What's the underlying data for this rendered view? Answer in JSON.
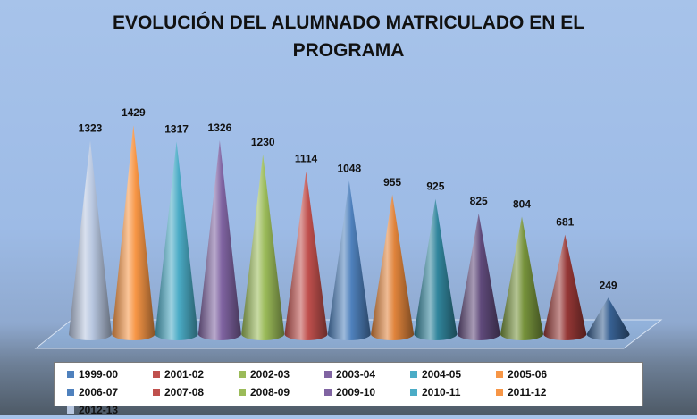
{
  "chart_data": {
    "type": "bar",
    "style": "3d-cone",
    "title_line1": "EVOLUCIÓN DEL ALUMNADO MATRICULADO EN EL",
    "title_line2": "PROGRAMA",
    "legend_placement": "bottom",
    "categories": [
      "2012-13",
      "2011-12",
      "2010-11",
      "2009-10",
      "2008-09",
      "2007-08",
      "2006-07",
      "2005-06",
      "2004-05",
      "2003-04",
      "2002-03",
      "2001-02",
      "1999-00"
    ],
    "values": [
      1323,
      1429,
      1317,
      1326,
      1230,
      1114,
      1048,
      955,
      925,
      825,
      804,
      681,
      249
    ],
    "colors": [
      "#b8c7e0",
      "#f79646",
      "#4bacc6",
      "#8064a2",
      "#9bbb59",
      "#c0504d",
      "#4f81bd",
      "#e0843c",
      "#31859c",
      "#604a7b",
      "#77933c",
      "#953735",
      "#376092"
    ],
    "legend": [
      "1999-00",
      "2001-02",
      "2002-03",
      "2003-04",
      "2004-05",
      "2005-06",
      "2006-07",
      "2007-08",
      "2008-09",
      "2009-10",
      "2010-11",
      "2011-12",
      "2012-13"
    ],
    "legend_colors": [
      "#4f81bd",
      "#c0504d",
      "#9bbb59",
      "#8064a2",
      "#4bacc6",
      "#f79646",
      "#4f81bd",
      "#c0504d",
      "#9bbb59",
      "#8064a2",
      "#4bacc6",
      "#f79646",
      "#b8c7e0"
    ],
    "ylim": [
      0,
      1500
    ],
    "grid": false
  }
}
